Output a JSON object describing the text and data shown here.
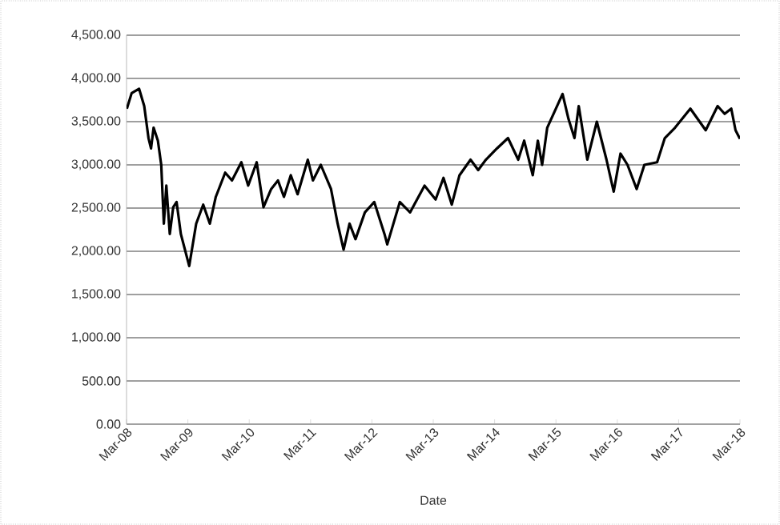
{
  "chart_data": {
    "type": "line",
    "xlabel": "Date",
    "grid": "y",
    "marker": "none",
    "line_style": "solid",
    "xlim": [
      "2008-03-01",
      "2018-03-01"
    ],
    "xticks": [
      {
        "value": "2008-03-01",
        "label": "Mar-08"
      },
      {
        "value": "2009-03-01",
        "label": "Mar-09"
      },
      {
        "value": "2010-03-01",
        "label": "Mar-10"
      },
      {
        "value": "2011-03-01",
        "label": "Mar-11"
      },
      {
        "value": "2012-03-01",
        "label": "Mar-12"
      },
      {
        "value": "2013-03-01",
        "label": "Mar-13"
      },
      {
        "value": "2014-03-01",
        "label": "Mar-14"
      },
      {
        "value": "2015-03-01",
        "label": "Mar-15"
      },
      {
        "value": "2016-03-01",
        "label": "Mar-16"
      },
      {
        "value": "2017-03-01",
        "label": "Mar-17"
      },
      {
        "value": "2018-03-01",
        "label": "Mar-18"
      }
    ],
    "ylim": [
      0,
      4500
    ],
    "yticks": [
      {
        "value": 0,
        "label": "0.00"
      },
      {
        "value": 500,
        "label": "500.00"
      },
      {
        "value": 1000,
        "label": "1,000.00"
      },
      {
        "value": 1500,
        "label": "1,500.00"
      },
      {
        "value": 2000,
        "label": "2,000.00"
      },
      {
        "value": 2500,
        "label": "2,500.00"
      },
      {
        "value": 3000,
        "label": "3,000.00"
      },
      {
        "value": 3500,
        "label": "3,500.00"
      },
      {
        "value": 4000,
        "label": "4,000.00"
      },
      {
        "value": 4500,
        "label": "4,500.00"
      }
    ],
    "x": [
      "2008-03-03",
      "2008-04-01",
      "2008-05-15",
      "2008-06-15",
      "2008-07-10",
      "2008-07-25",
      "2008-08-10",
      "2008-09-05",
      "2008-09-25",
      "2008-10-10",
      "2008-10-25",
      "2008-11-15",
      "2008-12-05",
      "2008-12-25",
      "2009-01-20",
      "2009-03-09",
      "2009-04-20",
      "2009-06-01",
      "2009-07-10",
      "2009-08-15",
      "2009-10-10",
      "2009-11-20",
      "2010-01-15",
      "2010-02-25",
      "2010-04-15",
      "2010-05-25",
      "2010-07-10",
      "2010-08-20",
      "2010-09-25",
      "2010-11-05",
      "2010-12-15",
      "2011-02-15",
      "2011-03-15",
      "2011-05-01",
      "2011-07-01",
      "2011-08-10",
      "2011-09-15",
      "2011-10-20",
      "2011-11-25",
      "2012-01-20",
      "2012-03-15",
      "2012-05-15",
      "2012-06-01",
      "2012-08-15",
      "2012-10-15",
      "2013-01-10",
      "2013-03-15",
      "2013-05-01",
      "2013-06-20",
      "2013-08-05",
      "2013-10-10",
      "2013-11-25",
      "2014-01-10",
      "2014-03-15",
      "2014-05-20",
      "2014-07-20",
      "2014-08-25",
      "2014-10-15",
      "2014-11-15",
      "2014-12-10",
      "2015-01-10",
      "2015-04-10",
      "2015-05-15",
      "2015-06-20",
      "2015-07-15",
      "2015-09-05",
      "2015-11-01",
      "2015-12-28",
      "2016-02-10",
      "2016-03-20",
      "2016-05-01",
      "2016-06-25",
      "2016-08-10",
      "2016-10-25",
      "2016-12-10",
      "2017-02-10",
      "2017-05-10",
      "2017-08-10",
      "2017-10-20",
      "2017-12-01",
      "2018-01-10",
      "2018-02-05",
      "2018-03-01"
    ],
    "values": [
      3650,
      3830,
      3880,
      3680,
      3310,
      3190,
      3430,
      3280,
      3000,
      2320,
      2760,
      2200,
      2510,
      2570,
      2200,
      1830,
      2320,
      2540,
      2320,
      2630,
      2910,
      2820,
      3030,
      2760,
      3030,
      2510,
      2720,
      2820,
      2630,
      2880,
      2660,
      3060,
      2820,
      3000,
      2720,
      2320,
      2020,
      2320,
      2140,
      2450,
      2570,
      2200,
      2080,
      2570,
      2450,
      2760,
      2600,
      2850,
      2540,
      2880,
      3060,
      2940,
      3060,
      3190,
      3310,
      3060,
      3280,
      2880,
      3280,
      3000,
      3430,
      3820,
      3530,
      3310,
      3680,
      3060,
      3500,
      3060,
      2690,
      3130,
      3000,
      2720,
      3000,
      3030,
      3310,
      3430,
      3650,
      3400,
      3680,
      3590,
      3650,
      3400,
      3300
    ],
    "color": "#000000"
  }
}
